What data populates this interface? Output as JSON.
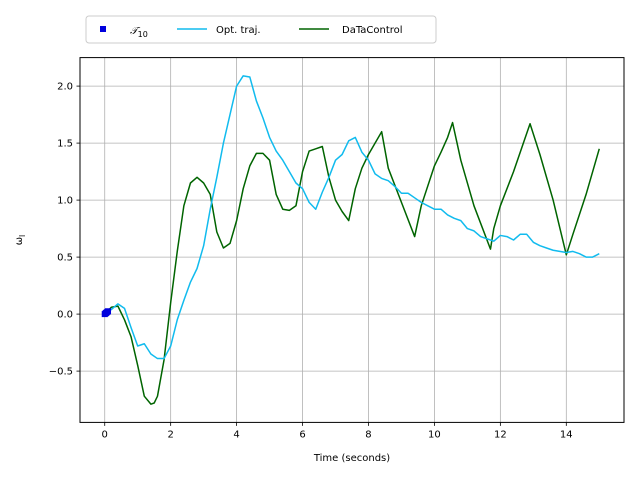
{
  "chart_data": {
    "type": "line",
    "title": "",
    "xlabel": "Time (seconds)",
    "ylabel": "ω",
    "ylabel_subscript": "l",
    "xlim": [
      -0.75,
      15.75
    ],
    "ylim": [
      -0.95,
      2.25
    ],
    "x_ticks": [
      0,
      2,
      4,
      6,
      8,
      10,
      12,
      14
    ],
    "x_tick_labels": [
      "0",
      "2",
      "4",
      "6",
      "8",
      "10",
      "12",
      "14"
    ],
    "y_ticks": [
      -0.5,
      0.0,
      0.5,
      1.0,
      1.5,
      2.0
    ],
    "y_tick_labels": [
      "−0.5",
      "0.0",
      "0.5",
      "1.0",
      "1.5",
      "2.0"
    ],
    "grid": true,
    "legend_position": "top",
    "legend": {
      "markers_label": "𝒯",
      "markers_label_sub": "10",
      "opt_label": "Opt. traj.",
      "dtc_label": "DaTaControl"
    },
    "colors": {
      "markers": "#0000dd",
      "opt": "#11bbee",
      "dtc": "#006400",
      "grid": "#b0b0b0"
    },
    "series": [
      {
        "name": "𝒯10",
        "kind": "markers",
        "x": [
          0.0,
          0.02,
          0.04,
          0.06,
          0.08,
          0.1
        ],
        "y": [
          0.0,
          0.005,
          0.01,
          0.015,
          0.02,
          0.025
        ]
      },
      {
        "name": "Opt. traj.",
        "kind": "line",
        "x": [
          0.0,
          0.2,
          0.4,
          0.6,
          0.8,
          1.0,
          1.2,
          1.4,
          1.6,
          1.8,
          2.0,
          2.2,
          2.4,
          2.6,
          2.8,
          3.0,
          3.2,
          3.4,
          3.6,
          3.8,
          4.0,
          4.2,
          4.4,
          4.6,
          4.8,
          5.0,
          5.2,
          5.4,
          5.6,
          5.8,
          6.0,
          6.2,
          6.4,
          6.6,
          6.8,
          7.0,
          7.2,
          7.4,
          7.6,
          7.8,
          8.0,
          8.2,
          8.4,
          8.6,
          8.8,
          9.0,
          9.2,
          9.4,
          9.6,
          9.8,
          10.0,
          10.2,
          10.4,
          10.6,
          10.8,
          11.0,
          11.2,
          11.4,
          11.6,
          11.8,
          12.0,
          12.2,
          12.4,
          12.6,
          12.8,
          13.0,
          13.2,
          13.4,
          13.6,
          13.8,
          14.0,
          14.2,
          14.4,
          14.6,
          14.8,
          15.0
        ],
        "y": [
          0.0,
          0.04,
          0.09,
          0.05,
          -0.12,
          -0.28,
          -0.26,
          -0.35,
          -0.39,
          -0.39,
          -0.28,
          -0.05,
          0.12,
          0.28,
          0.4,
          0.6,
          0.92,
          1.2,
          1.5,
          1.75,
          2.0,
          2.09,
          2.08,
          1.87,
          1.72,
          1.55,
          1.43,
          1.35,
          1.25,
          1.15,
          1.1,
          0.98,
          0.92,
          1.07,
          1.2,
          1.35,
          1.4,
          1.52,
          1.55,
          1.42,
          1.35,
          1.23,
          1.19,
          1.17,
          1.12,
          1.06,
          1.06,
          1.02,
          0.98,
          0.95,
          0.92,
          0.92,
          0.87,
          0.84,
          0.82,
          0.75,
          0.73,
          0.68,
          0.66,
          0.64,
          0.69,
          0.68,
          0.65,
          0.7,
          0.7,
          0.63,
          0.6,
          0.58,
          0.56,
          0.55,
          0.54,
          0.55,
          0.53,
          0.5,
          0.5,
          0.53
        ]
      },
      {
        "name": "DaTaControl",
        "kind": "line",
        "x": [
          0.0,
          0.2,
          0.4,
          0.6,
          0.8,
          1.0,
          1.2,
          1.4,
          1.5,
          1.6,
          1.8,
          2.0,
          2.2,
          2.4,
          2.6,
          2.8,
          3.0,
          3.2,
          3.4,
          3.6,
          3.8,
          4.0,
          4.2,
          4.4,
          4.6,
          4.8,
          5.0,
          5.2,
          5.4,
          5.6,
          5.8,
          6.0,
          6.2,
          6.4,
          6.6,
          6.8,
          7.0,
          7.2,
          7.4,
          7.6,
          7.8,
          8.0,
          8.4,
          8.6,
          9.0,
          9.4,
          9.6,
          10.0,
          10.2,
          10.4,
          10.55,
          10.8,
          11.2,
          11.7,
          11.8,
          12.0,
          12.4,
          12.9,
          13.2,
          13.6,
          14.0,
          14.2,
          14.6,
          15.0
        ],
        "y": [
          0.0,
          0.06,
          0.07,
          -0.05,
          -0.2,
          -0.45,
          -0.72,
          -0.79,
          -0.78,
          -0.72,
          -0.4,
          0.1,
          0.55,
          0.95,
          1.15,
          1.2,
          1.15,
          1.05,
          0.72,
          0.58,
          0.62,
          0.82,
          1.1,
          1.3,
          1.41,
          1.41,
          1.35,
          1.05,
          0.92,
          0.91,
          0.95,
          1.25,
          1.43,
          1.45,
          1.47,
          1.2,
          1.0,
          0.9,
          0.82,
          1.1,
          1.28,
          1.4,
          1.6,
          1.28,
          0.98,
          0.68,
          0.95,
          1.3,
          1.42,
          1.55,
          1.68,
          1.35,
          0.95,
          0.57,
          0.75,
          0.95,
          1.25,
          1.67,
          1.4,
          1.0,
          0.52,
          0.7,
          1.05,
          1.45
        ]
      }
    ]
  }
}
